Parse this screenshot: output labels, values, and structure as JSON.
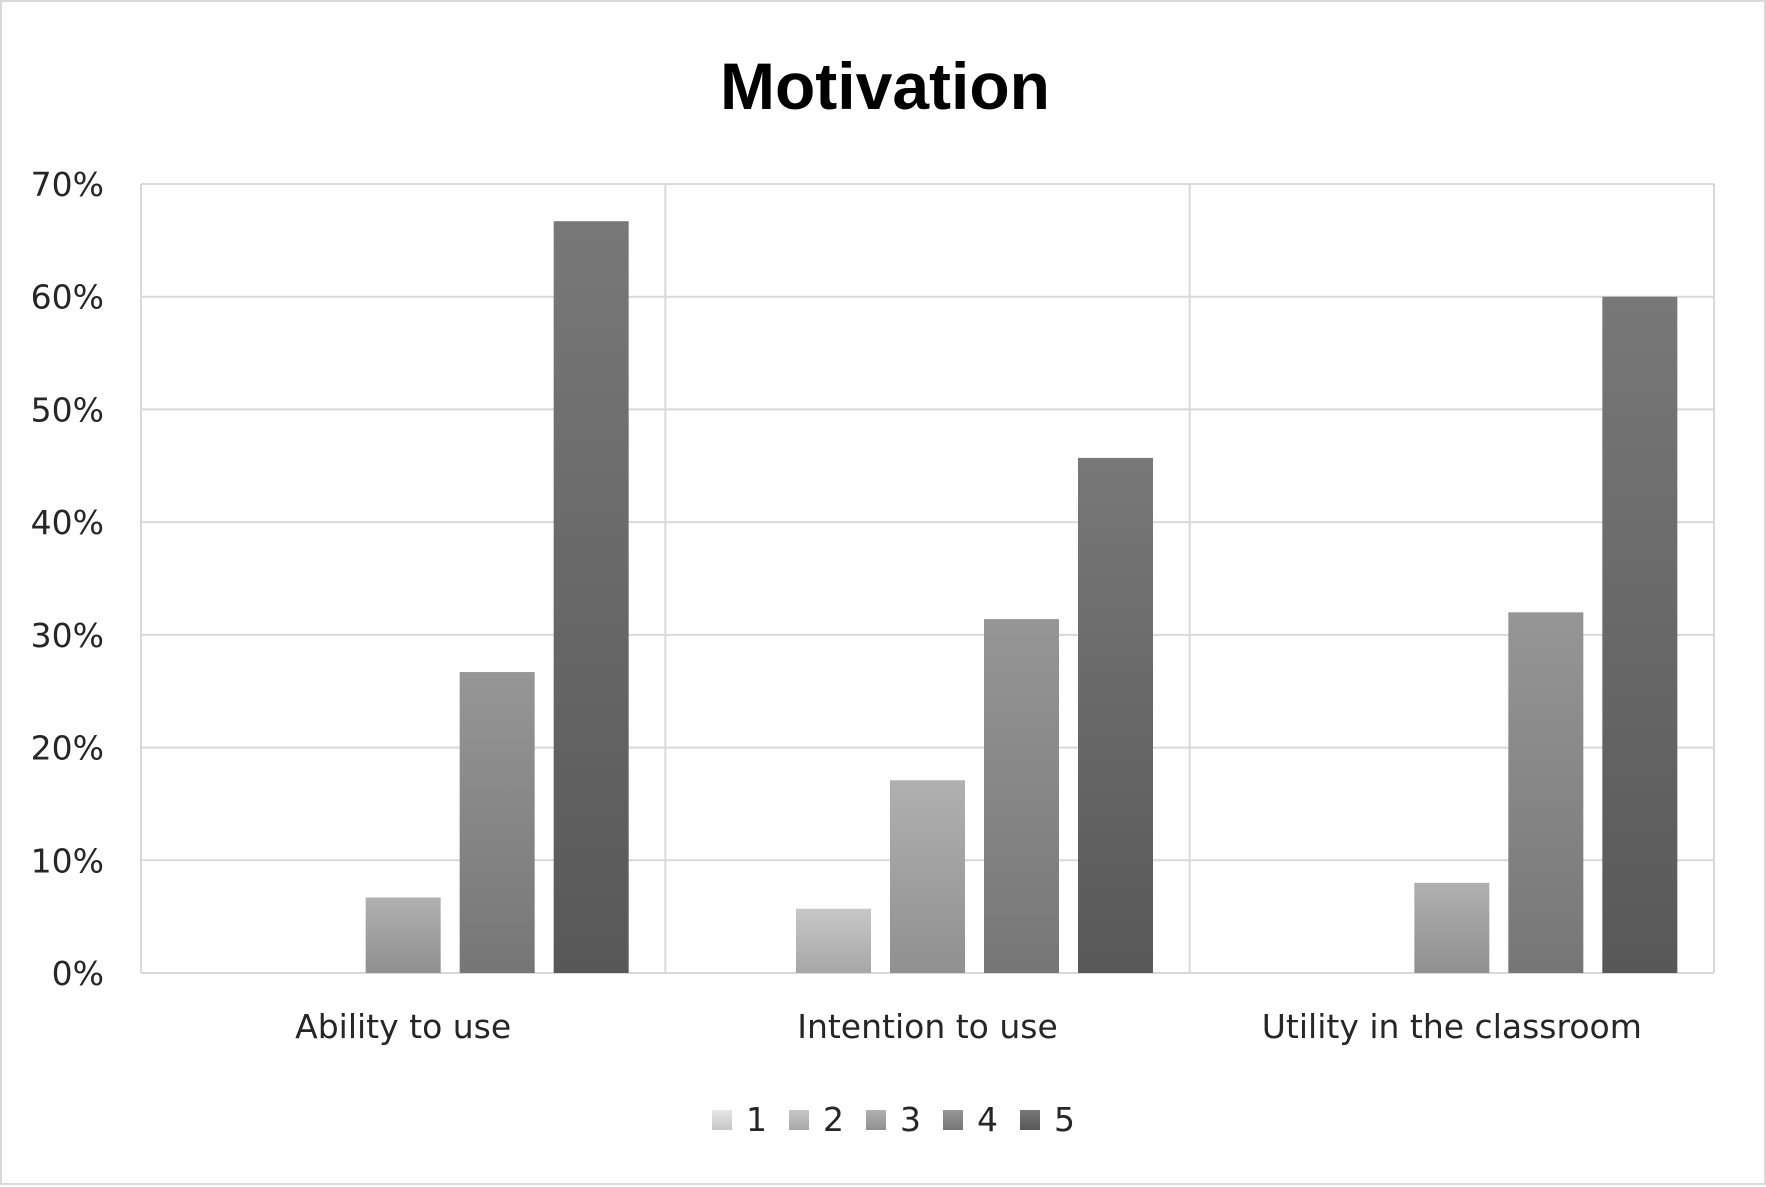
{
  "chart_data": {
    "type": "bar",
    "title": "Motivation",
    "xlabel": "",
    "ylabel": "",
    "categories": [
      "Ability to use",
      "Intention to use",
      "Utility in the classroom"
    ],
    "series": [
      {
        "name": "1",
        "values": [
          0,
          0,
          0
        ],
        "color": "#dcdcdc"
      },
      {
        "name": "2",
        "values": [
          0,
          5.7,
          0
        ],
        "color": "#bdbdbd"
      },
      {
        "name": "3",
        "values": [
          6.7,
          17.1,
          8.0
        ],
        "color": "#a6a6a6"
      },
      {
        "name": "4",
        "values": [
          26.7,
          31.4,
          32.0
        ],
        "color": "#8c8c8c"
      },
      {
        "name": "5",
        "values": [
          66.7,
          45.7,
          60.0
        ],
        "color": "#6e6e6e"
      }
    ],
    "ylim": [
      0,
      70
    ],
    "yticks": [
      "0%",
      "10%",
      "20%",
      "30%",
      "40%",
      "50%",
      "60%",
      "70%"
    ],
    "grid": true,
    "legend": "bottom"
  }
}
